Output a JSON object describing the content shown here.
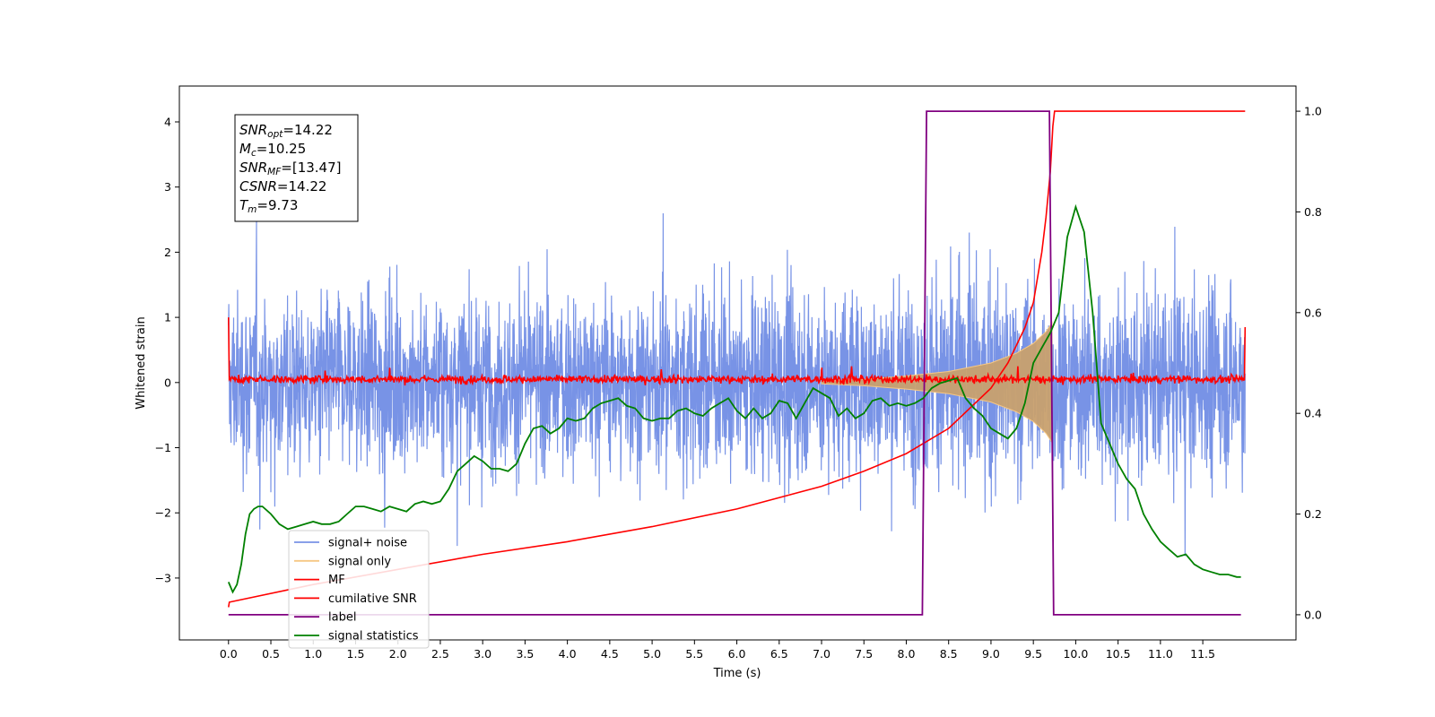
{
  "chart_data": {
    "type": "line",
    "title": "",
    "xlabel": "Time (s)",
    "ylabel": "Whitened strain",
    "xlim": [
      -0.58,
      12.6
    ],
    "ylim": [
      -3.95,
      4.55
    ],
    "y2lim": [
      -0.05,
      1.05
    ],
    "x_ticks": [
      "0.0",
      "0.5",
      "1.0",
      "1.5",
      "2.0",
      "2.5",
      "3.0",
      "3.5",
      "4.0",
      "4.5",
      "5.0",
      "5.5",
      "6.0",
      "6.5",
      "7.0",
      "7.5",
      "8.0",
      "8.5",
      "9.0",
      "9.5",
      "10.0",
      "10.5",
      "11.0",
      "11.5"
    ],
    "y_ticks": [
      "−3",
      "−2",
      "−1",
      "0",
      "1",
      "2",
      "3",
      "4"
    ],
    "y2_ticks": [
      "0.0",
      "0.2",
      "0.4",
      "0.6",
      "0.8",
      "1.0"
    ],
    "annotation": {
      "lines": [
        {
          "sym": "SNR",
          "sub": "opt",
          "val": "=14.22"
        },
        {
          "sym": "M",
          "sub": "c",
          "val": "=10.25"
        },
        {
          "sym": "SNR",
          "sub": "MF",
          "val": "=[13.47]"
        },
        {
          "sym": "CSNR",
          "sub": "",
          "val": "=14.22"
        },
        {
          "sym": "T",
          "sub": "m",
          "val": "=9.73"
        }
      ]
    },
    "legend": {
      "position": "lower-left",
      "entries": [
        {
          "label": "signal+ noise",
          "color": "#7893e6"
        },
        {
          "label": "signal only",
          "color": "#f6c784"
        },
        {
          "label": "MF",
          "color": "#ff0000"
        },
        {
          "label": "cumilative SNR",
          "color": "#ff0000"
        },
        {
          "label": "label",
          "color": "#800080"
        },
        {
          "label": "signal statistics",
          "color": "#008000"
        }
      ]
    },
    "series": [
      {
        "name": "signal+ noise",
        "axis": "left",
        "color": "#7893e6",
        "x_range": [
          0.0,
          12.0
        ],
        "envelope": {
          "x": [
            0.0,
            2.0,
            4.0,
            6.0,
            8.0,
            9.5,
            9.73,
            12.0
          ],
          "upper": [
            2.6,
            2.6,
            2.7,
            2.8,
            3.0,
            3.3,
            3.4,
            3.2
          ],
          "lower": [
            -2.8,
            -2.7,
            -2.6,
            -2.9,
            -2.9,
            -3.3,
            -2.5,
            -2.4
          ]
        }
      },
      {
        "name": "signal only",
        "axis": "left",
        "color": "#c8a06e",
        "x": [
          7.0,
          7.5,
          8.0,
          8.5,
          9.0,
          9.3,
          9.5,
          9.65,
          9.72
        ],
        "amplitude": [
          0.02,
          0.05,
          0.1,
          0.17,
          0.3,
          0.45,
          0.6,
          0.78,
          0.92
        ]
      },
      {
        "name": "MF",
        "axis": "left",
        "color": "#ff0000",
        "x_range": [
          0.0,
          12.0
        ],
        "level": 0.05,
        "spread": 0.08,
        "edge_values": [
          1.0,
          0.85
        ]
      },
      {
        "name": "cumilative SNR",
        "axis": "right",
        "color": "#ff0000",
        "x": [
          0.0,
          0.01,
          1.0,
          2.0,
          3.0,
          4.0,
          5.0,
          6.0,
          7.0,
          7.5,
          8.0,
          8.5,
          9.0,
          9.2,
          9.4,
          9.5,
          9.6,
          9.65,
          9.7,
          9.73,
          9.75,
          12.0
        ],
        "values": [
          0.015,
          0.025,
          0.06,
          0.09,
          0.12,
          0.145,
          0.175,
          0.21,
          0.255,
          0.285,
          0.32,
          0.37,
          0.45,
          0.5,
          0.57,
          0.62,
          0.72,
          0.79,
          0.88,
          0.97,
          1.0,
          1.0
        ]
      },
      {
        "name": "label",
        "axis": "right",
        "color": "#800080",
        "x": [
          0.0,
          8.19,
          8.24,
          9.69,
          9.74,
          11.95
        ],
        "values": [
          0.0,
          0.0,
          1.0,
          1.0,
          0.0,
          0.0
        ]
      },
      {
        "name": "signal statistics",
        "axis": "right",
        "color": "#008000",
        "x": [
          0.0,
          0.05,
          0.1,
          0.15,
          0.2,
          0.25,
          0.3,
          0.35,
          0.4,
          0.5,
          0.6,
          0.7,
          0.8,
          0.9,
          1.0,
          1.1,
          1.2,
          1.3,
          1.4,
          1.5,
          1.6,
          1.7,
          1.8,
          1.9,
          2.0,
          2.1,
          2.2,
          2.3,
          2.4,
          2.5,
          2.6,
          2.7,
          2.8,
          2.9,
          3.0,
          3.1,
          3.2,
          3.3,
          3.4,
          3.5,
          3.6,
          3.7,
          3.8,
          3.9,
          4.0,
          4.1,
          4.2,
          4.3,
          4.4,
          4.5,
          4.6,
          4.7,
          4.8,
          4.9,
          5.0,
          5.1,
          5.2,
          5.3,
          5.4,
          5.5,
          5.6,
          5.7,
          5.8,
          5.9,
          6.0,
          6.1,
          6.2,
          6.3,
          6.4,
          6.5,
          6.6,
          6.7,
          6.8,
          6.9,
          7.0,
          7.1,
          7.2,
          7.3,
          7.4,
          7.5,
          7.6,
          7.7,
          7.8,
          7.9,
          8.0,
          8.1,
          8.2,
          8.3,
          8.4,
          8.5,
          8.6,
          8.7,
          8.8,
          8.9,
          9.0,
          9.1,
          9.2,
          9.3,
          9.4,
          9.5,
          9.6,
          9.7,
          9.8,
          9.9,
          10.0,
          10.1,
          10.2,
          10.3,
          10.4,
          10.5,
          10.6,
          10.7,
          10.8,
          10.9,
          11.0,
          11.1,
          11.2,
          11.3,
          11.4,
          11.5,
          11.6,
          11.7,
          11.8,
          11.9,
          11.95
        ],
        "values": [
          0.065,
          0.045,
          0.06,
          0.1,
          0.16,
          0.2,
          0.21,
          0.215,
          0.215,
          0.2,
          0.18,
          0.17,
          0.175,
          0.18,
          0.185,
          0.18,
          0.18,
          0.185,
          0.2,
          0.215,
          0.215,
          0.21,
          0.205,
          0.215,
          0.21,
          0.205,
          0.22,
          0.225,
          0.22,
          0.225,
          0.25,
          0.285,
          0.3,
          0.315,
          0.305,
          0.29,
          0.29,
          0.285,
          0.3,
          0.34,
          0.37,
          0.375,
          0.36,
          0.37,
          0.39,
          0.385,
          0.39,
          0.41,
          0.42,
          0.425,
          0.43,
          0.415,
          0.41,
          0.39,
          0.385,
          0.39,
          0.39,
          0.405,
          0.41,
          0.4,
          0.395,
          0.41,
          0.42,
          0.43,
          0.405,
          0.39,
          0.41,
          0.39,
          0.4,
          0.425,
          0.42,
          0.39,
          0.42,
          0.45,
          0.44,
          0.43,
          0.395,
          0.41,
          0.39,
          0.4,
          0.425,
          0.43,
          0.415,
          0.42,
          0.415,
          0.42,
          0.43,
          0.45,
          0.46,
          0.465,
          0.47,
          0.43,
          0.41,
          0.395,
          0.37,
          0.36,
          0.35,
          0.37,
          0.42,
          0.5,
          0.53,
          0.56,
          0.6,
          0.75,
          0.81,
          0.76,
          0.6,
          0.38,
          0.34,
          0.3,
          0.27,
          0.25,
          0.2,
          0.17,
          0.145,
          0.13,
          0.115,
          0.12,
          0.1,
          0.09,
          0.085,
          0.08,
          0.08,
          0.075,
          0.075
        ]
      }
    ]
  }
}
